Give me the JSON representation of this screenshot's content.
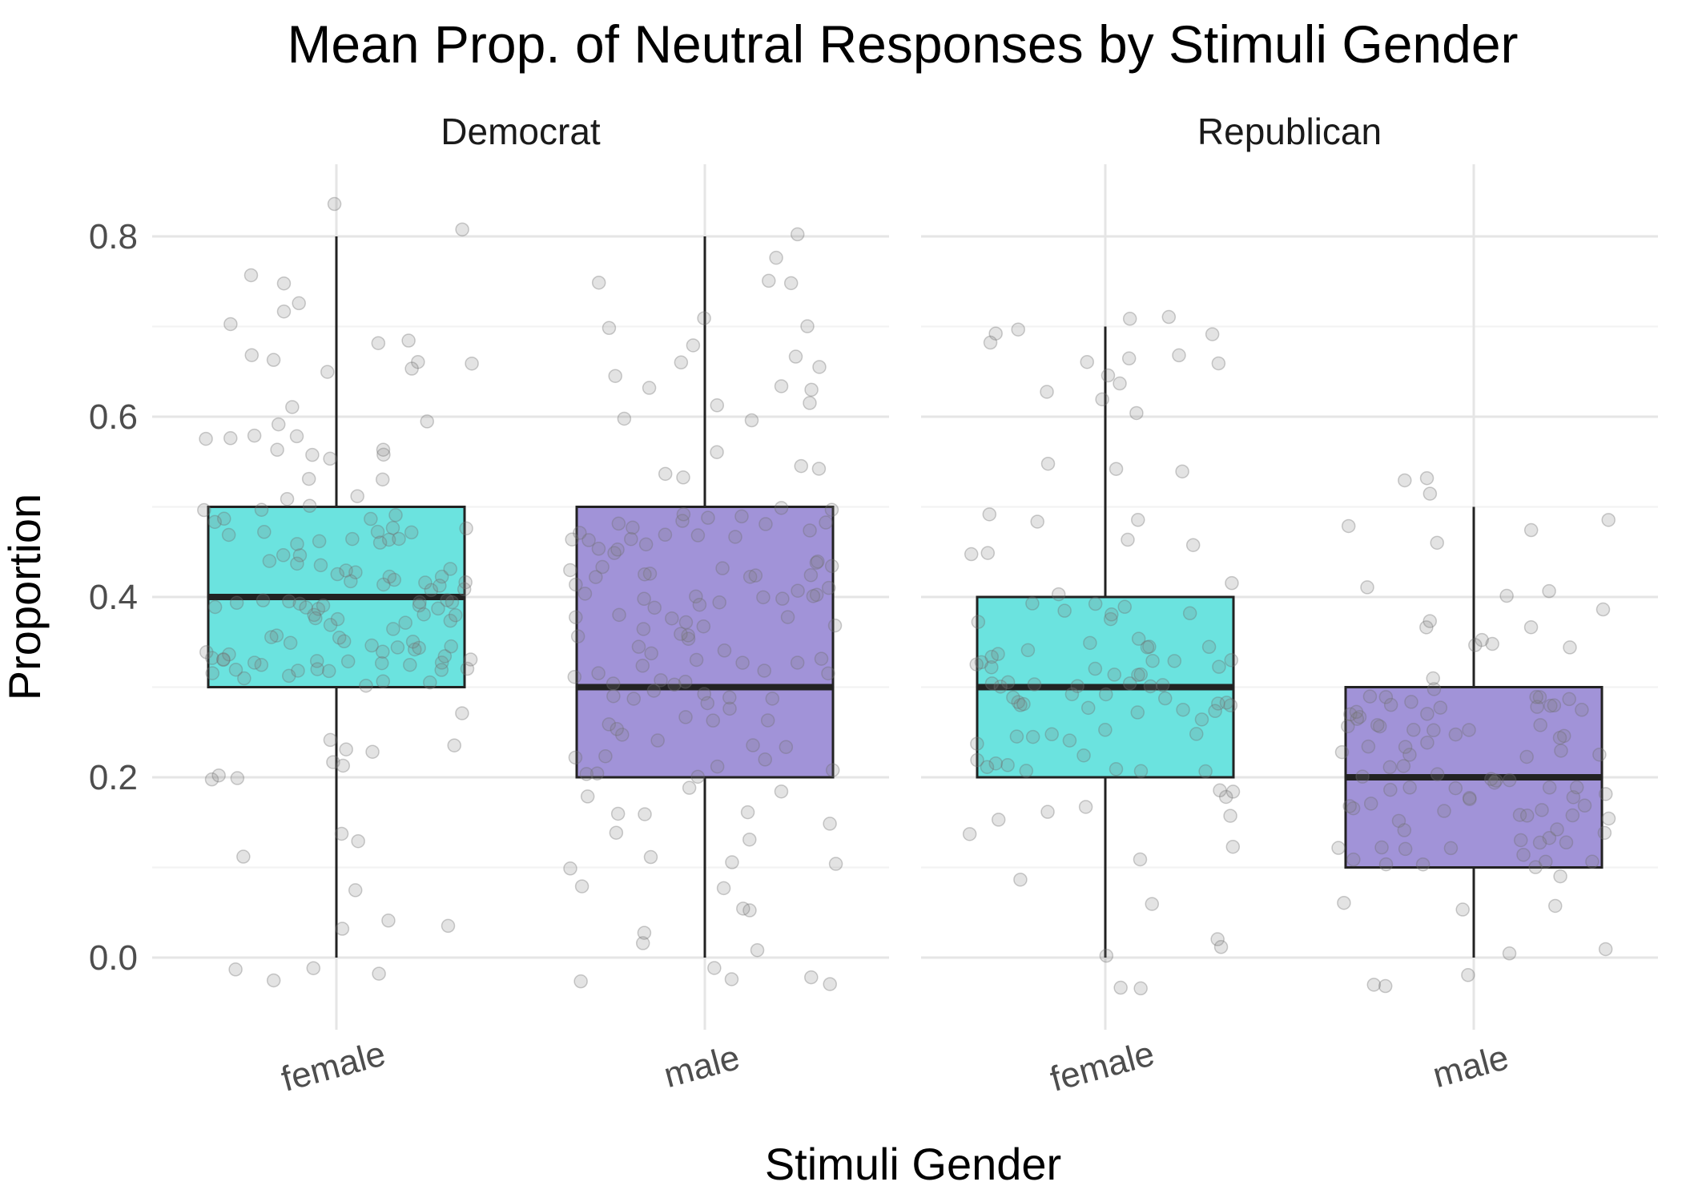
{
  "chart_data": {
    "type": "boxplot",
    "title": "Mean Prop. of Neutral Responses by Stimuli Gender",
    "xlabel": "Stimuli Gender",
    "ylabel": "Proportion",
    "ylim": [
      -0.08,
      0.88
    ],
    "yticks": [
      "0.0",
      "0.2",
      "0.4",
      "0.6",
      "0.8"
    ],
    "ytick_values": [
      0,
      0.2,
      0.4,
      0.6,
      0.8
    ],
    "categories": [
      "female",
      "male"
    ],
    "colors": {
      "female": "#6BE3DF",
      "male": "#A193D8"
    },
    "grid": true,
    "legend": "none",
    "facets": [
      {
        "name": "Democrat",
        "boxes": [
          {
            "category": "female",
            "min": 0.0,
            "q1": 0.3,
            "median": 0.4,
            "q3": 0.5,
            "max": 0.8
          },
          {
            "category": "male",
            "min": 0.0,
            "q1": 0.2,
            "median": 0.3,
            "q3": 0.5,
            "max": 0.8
          }
        ]
      },
      {
        "name": "Republican",
        "boxes": [
          {
            "category": "female",
            "min": 0.0,
            "q1": 0.2,
            "median": 0.3,
            "q3": 0.4,
            "max": 0.7
          },
          {
            "category": "male",
            "min": 0.0,
            "q1": 0.1,
            "median": 0.2,
            "q3": 0.3,
            "max": 0.5
          }
        ]
      }
    ]
  }
}
